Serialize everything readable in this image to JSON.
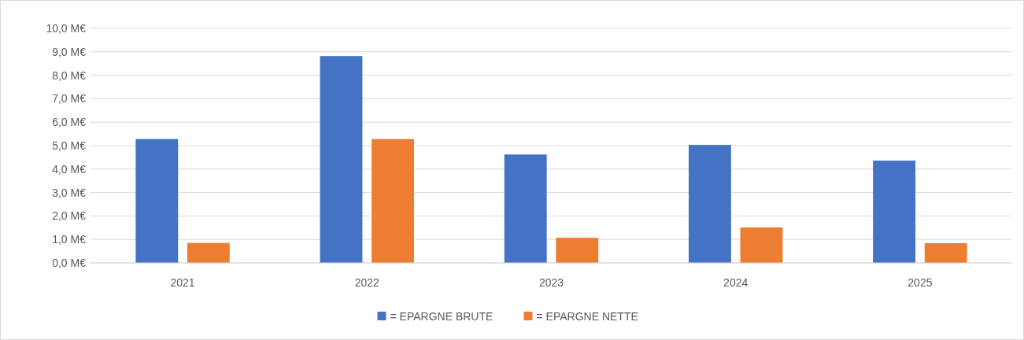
{
  "chart_data": {
    "type": "bar",
    "categories": [
      "2021",
      "2022",
      "2023",
      "2024",
      "2025"
    ],
    "series": [
      {
        "name": "= EPARGNE BRUTE",
        "color": "#4472c4",
        "values": [
          5.28,
          8.82,
          4.62,
          5.03,
          4.36
        ]
      },
      {
        "name": "= EPARGNE NETTE",
        "color": "#ed7d31",
        "values": [
          0.85,
          5.28,
          1.07,
          1.51,
          0.84
        ]
      }
    ],
    "ylim": [
      0,
      10
    ],
    "yticks": [
      {
        "value": 0,
        "label": "0,0 M€"
      },
      {
        "value": 1,
        "label": "1,0 M€"
      },
      {
        "value": 2,
        "label": "2,0 M€"
      },
      {
        "value": 3,
        "label": "3,0 M€"
      },
      {
        "value": 4,
        "label": "4,0 M€"
      },
      {
        "value": 5,
        "label": "5,0 M€"
      },
      {
        "value": 6,
        "label": "6,0 M€"
      },
      {
        "value": 7,
        "label": "7,0 M€"
      },
      {
        "value": 8,
        "label": "8,0 M€"
      },
      {
        "value": 9,
        "label": "9,0 M€"
      },
      {
        "value": 10,
        "label": "10,0 M€"
      }
    ],
    "grid": "y",
    "legend": "bottom"
  }
}
